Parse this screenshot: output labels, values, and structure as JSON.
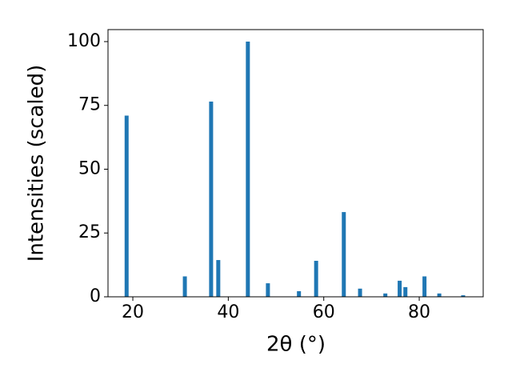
{
  "chart_data": {
    "type": "bar",
    "xlabel": "2θ (°)",
    "ylabel": "Intensities (scaled)",
    "x": [
      18.7,
      30.9,
      36.4,
      37.9,
      44.1,
      48.3,
      54.8,
      58.4,
      64.2,
      67.6,
      72.9,
      75.9,
      77.1,
      81.1,
      84.2,
      89.2
    ],
    "values": [
      71,
      8,
      76.5,
      14.4,
      100,
      5.3,
      2.2,
      14.1,
      33.2,
      3.2,
      1.3,
      6.3,
      3.8,
      8,
      1.3,
      0.6
    ],
    "color": "#1f77b4",
    "xlim": [
      14.8,
      93.4
    ],
    "ylim": [
      0,
      104.7
    ],
    "xticks": [
      20,
      40,
      60,
      80
    ],
    "yticks": [
      0,
      25,
      50,
      75,
      100
    ]
  }
}
